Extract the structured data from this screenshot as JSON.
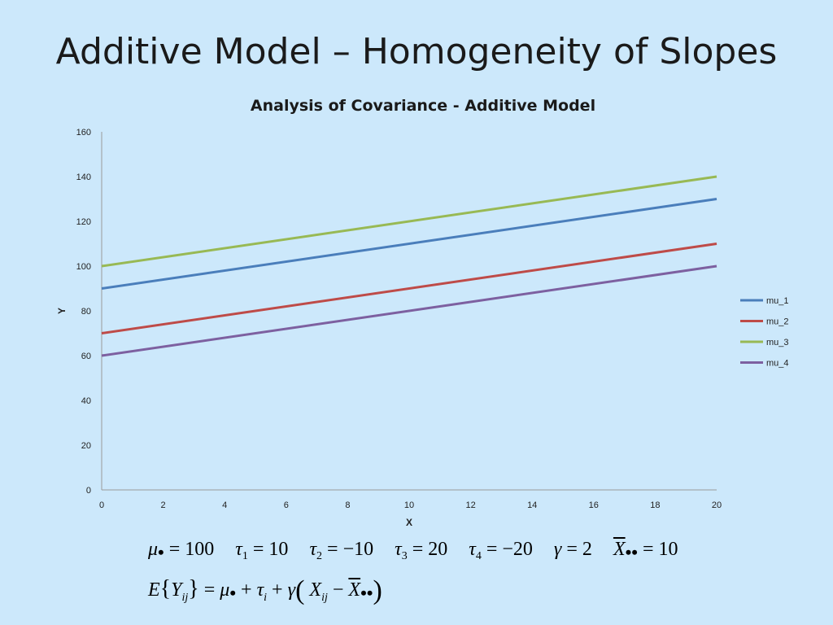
{
  "slide": {
    "title": "Additive Model – Homogeneity of Slopes"
  },
  "chart_data": {
    "type": "line",
    "title": "Analysis of Covariance - Additive Model",
    "xlabel": "X",
    "ylabel": "Y",
    "xlim": [
      0,
      20
    ],
    "ylim": [
      0,
      160
    ],
    "xticks": [
      0,
      2,
      4,
      6,
      8,
      10,
      12,
      14,
      16,
      18,
      20
    ],
    "yticks": [
      0,
      20,
      40,
      60,
      80,
      100,
      120,
      140,
      160
    ],
    "grid": false,
    "legend_position": "right",
    "series": [
      {
        "name": "mu_1",
        "color": "#4a7ebb",
        "x": [
          0,
          20
        ],
        "values": [
          90,
          130
        ]
      },
      {
        "name": "mu_2",
        "color": "#be4b48",
        "x": [
          0,
          20
        ],
        "values": [
          70,
          110
        ]
      },
      {
        "name": "mu_3",
        "color": "#98b954",
        "x": [
          0,
          20
        ],
        "values": [
          100,
          140
        ]
      },
      {
        "name": "mu_4",
        "color": "#7d60a0",
        "x": [
          0,
          20
        ],
        "values": [
          60,
          100
        ]
      }
    ]
  },
  "formulas": {
    "params": [
      {
        "sym": "μ",
        "sub": "•",
        "val": "= 100"
      },
      {
        "sym": "τ",
        "sub": "1",
        "val": "= 10"
      },
      {
        "sym": "τ",
        "sub": "2",
        "val": "= −10"
      },
      {
        "sym": "τ",
        "sub": "3",
        "val": "= 20"
      },
      {
        "sym": "τ",
        "sub": "4",
        "val": "= −20"
      },
      {
        "sym": "γ",
        "sub": "",
        "val": "= 2"
      },
      {
        "sym": "X",
        "sub": "••",
        "val": "= 10"
      }
    ],
    "model": {
      "lhs_fn": "E",
      "lhs_var": "Y",
      "lhs_sub": "ij",
      "rhs_mu": "μ",
      "rhs_mu_sub": "•",
      "rhs_tau": "τ",
      "rhs_tau_sub": "i",
      "rhs_gamma": "γ",
      "rhs_x": "X",
      "rhs_x_sub": "ij",
      "rhs_xbar": "X",
      "rhs_xbar_sub": "••"
    }
  }
}
